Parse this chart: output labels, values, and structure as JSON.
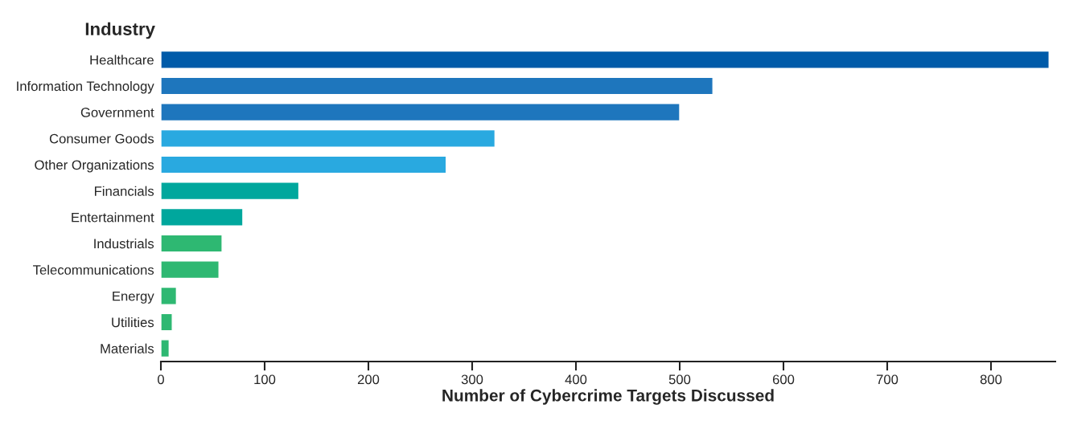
{
  "chart_data": {
    "type": "bar",
    "orientation": "horizontal",
    "ylabel": "Industry",
    "xlabel": "Number of Cybercrime Targets Discussed",
    "categories": [
      "Healthcare",
      "Information Technology",
      "Government",
      "Consumer Goods",
      "Other Organizations",
      "Financials",
      "Entertainment",
      "Industrials",
      "Telecommunications",
      "Energy",
      "Utilities",
      "Materials"
    ],
    "values": [
      856,
      532,
      500,
      322,
      275,
      133,
      79,
      59,
      56,
      15,
      11,
      8
    ],
    "colors": [
      "#005ba9",
      "#1e76bd",
      "#1e76bd",
      "#29a9e0",
      "#29a9e0",
      "#00a79d",
      "#00a79d",
      "#2eb872",
      "#2eb872",
      "#2eb872",
      "#2eb872",
      "#2eb872"
    ],
    "xlim": [
      0,
      862
    ],
    "xticks": [
      0,
      100,
      200,
      300,
      400,
      500,
      600,
      700,
      800
    ],
    "grid": false,
    "legend": false
  }
}
